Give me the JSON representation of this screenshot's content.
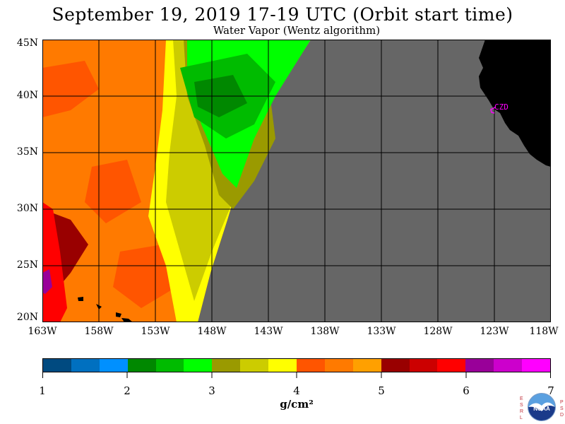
{
  "title": "September 19, 2019  17-19 UTC  (Orbit start time)",
  "subtitle": "Water Vapor (Wentz algorithm)",
  "map": {
    "lat_labels": [
      "45N",
      "40N",
      "35N",
      "30N",
      "25N",
      "20N"
    ],
    "lon_labels": [
      "163W",
      "158W",
      "153W",
      "148W",
      "143W",
      "138W",
      "133W",
      "128W",
      "123W",
      "118W"
    ],
    "station_label": "CZD",
    "colors": {
      "no_data": "#666666",
      "land": "#000000",
      "station": "#ff00ff"
    }
  },
  "colorbar": {
    "ticks": [
      "1",
      "2",
      "3",
      "4",
      "5",
      "6",
      "7"
    ],
    "units": "g/cm²",
    "colors": [
      "#004a80",
      "#0070c0",
      "#0090ff",
      "#008800",
      "#00bb00",
      "#00ff00",
      "#9a9a00",
      "#cccc00",
      "#ffff00",
      "#ff5500",
      "#ff7a00",
      "#ffa000",
      "#990000",
      "#cc0000",
      "#ff0000",
      "#990099",
      "#cc00cc",
      "#ff00ff"
    ]
  },
  "logo": {
    "left_letters": "ESRL",
    "right_letters": "PSD",
    "text": "NOAA"
  }
}
